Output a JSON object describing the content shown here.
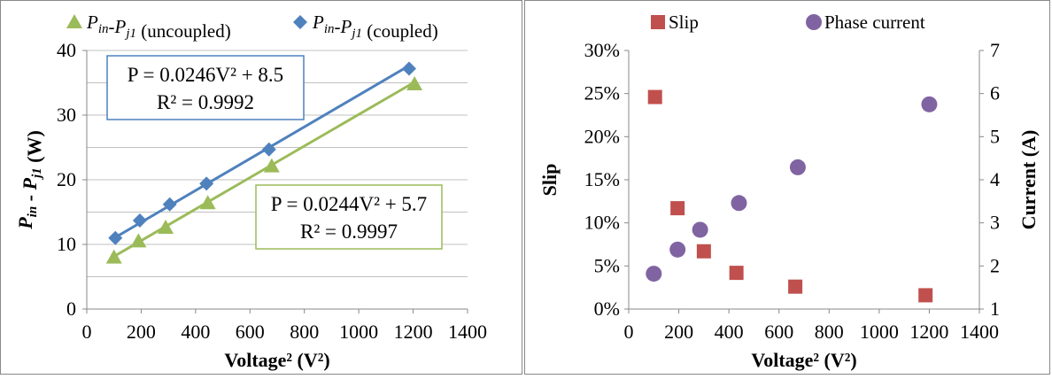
{
  "chart_data": [
    {
      "type": "scatter",
      "xlabel": "Voltage² (V²)",
      "ylabel": "P_in - P_j1 (W)",
      "xlim": [
        0,
        1400
      ],
      "ylim": [
        0,
        40
      ],
      "x_ticks": [
        "0",
        "200",
        "400",
        "600",
        "800",
        "1000",
        "1200",
        "1400"
      ],
      "y_ticks": [
        "0",
        "10",
        "20",
        "30",
        "40"
      ],
      "grid": "horizontal",
      "legend_position": "top",
      "series": [
        {
          "name": "P_in-P_j1 (uncoupled)",
          "marker": "triangle",
          "color": "#9bbb59",
          "x": [
            100,
            190,
            290,
            445,
            680,
            1205
          ],
          "y": [
            8.0,
            10.5,
            12.6,
            16.4,
            22.1,
            34.8
          ],
          "trendline": {
            "equation": "P = 0.0244V² + 5.7",
            "r2": "R² = 0.9997",
            "slope": 0.0244,
            "intercept": 5.7
          }
        },
        {
          "name": "P_in-P_j1 (coupled)",
          "marker": "diamond",
          "color": "#4f81bd",
          "x": [
            105,
            195,
            305,
            440,
            670,
            1185
          ],
          "y": [
            11.0,
            13.7,
            16.2,
            19.4,
            24.7,
            37.2
          ],
          "trendline": {
            "equation": "P = 0.0246V² + 8.5",
            "r2": "R² = 0.9992",
            "slope": 0.0246,
            "intercept": 8.5
          }
        }
      ]
    },
    {
      "type": "scatter",
      "xlabel": "Voltage² (V²)",
      "ylabel": "Slip",
      "y2label": "Current (A)",
      "xlim": [
        0,
        1400
      ],
      "ylim": [
        0,
        30
      ],
      "y2lim": [
        1,
        7
      ],
      "x_ticks": [
        "0",
        "200",
        "400",
        "600",
        "800",
        "1000",
        "1200",
        "1400"
      ],
      "y_ticks": [
        "0%",
        "5%",
        "10%",
        "15%",
        "20%",
        "25%",
        "30%"
      ],
      "y2_ticks": [
        "1",
        "2",
        "3",
        "4",
        "5",
        "6",
        "7"
      ],
      "grid": "none",
      "legend_position": "top",
      "series": [
        {
          "name": "Slip",
          "marker": "square",
          "color": "#c0504d",
          "axis": "left",
          "x": [
            105,
            195,
            300,
            430,
            665,
            1185
          ],
          "y": [
            24.6,
            11.7,
            6.7,
            4.2,
            2.6,
            1.6
          ]
        },
        {
          "name": "Phase current",
          "marker": "circle",
          "color": "#8064a2",
          "axis": "right",
          "x": [
            100,
            195,
            285,
            440,
            675,
            1200
          ],
          "y": [
            1.82,
            2.38,
            2.84,
            3.46,
            4.29,
            5.75
          ]
        }
      ]
    }
  ]
}
